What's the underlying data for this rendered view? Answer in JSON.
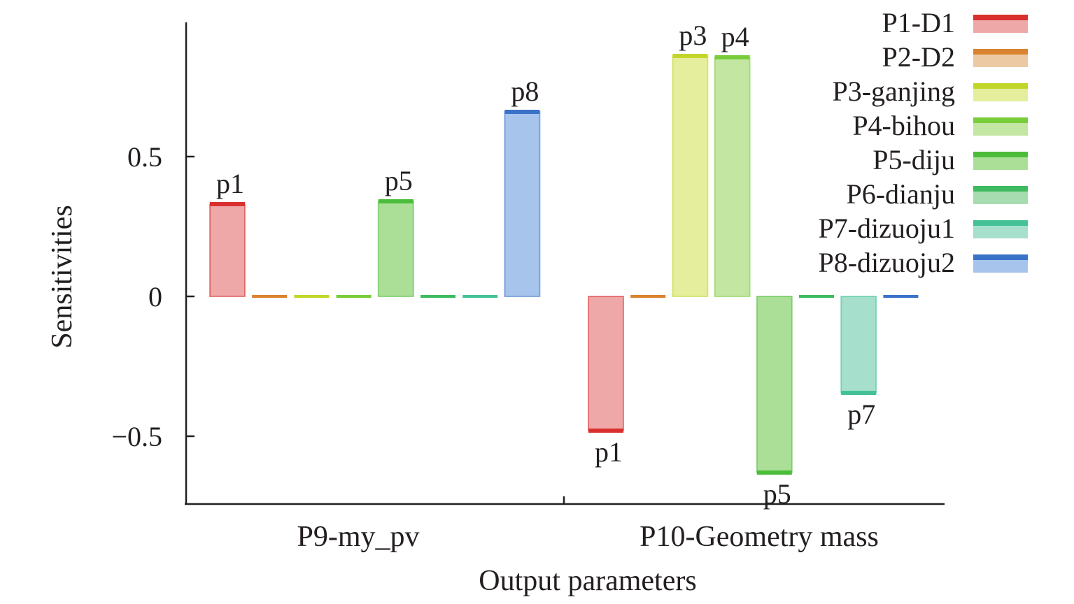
{
  "chart_data": {
    "type": "bar",
    "xlabel": "Output parameters",
    "ylabel": "Sensitivities",
    "ylim": [
      -0.74,
      0.96
    ],
    "yticks": [
      {
        "value": 0.5,
        "label": "0.5"
      },
      {
        "value": 0,
        "label": "0"
      },
      {
        "value": -0.5,
        "label": "−0.5"
      }
    ],
    "categories": [
      "P9-my_pv",
      "P10-Geometry mass"
    ],
    "legend_position": "top-right",
    "series": [
      {
        "name": "P1-D1",
        "color": "#d9302f",
        "fill": "#eda8a7",
        "values": [
          0.33,
          -0.48
        ],
        "labels": [
          "p1",
          "p1"
        ]
      },
      {
        "name": "P2-D2",
        "color": "#d9822f",
        "fill": "#edc9a3",
        "values": [
          0.0,
          0.0
        ],
        "labels": [
          "",
          ""
        ]
      },
      {
        "name": "P3-ganjing",
        "color": "#c2d62a",
        "fill": "#e4ee9c",
        "values": [
          0.0,
          0.86
        ],
        "labels": [
          "",
          "p3"
        ]
      },
      {
        "name": "P4-bihou",
        "color": "#79cc3a",
        "fill": "#c4e6a3",
        "values": [
          0.0,
          0.855
        ],
        "labels": [
          "",
          "p4"
        ]
      },
      {
        "name": "P5-diju",
        "color": "#4cbd3a",
        "fill": "#abdf98",
        "values": [
          0.34,
          -0.63
        ],
        "labels": [
          "p5",
          "p5"
        ]
      },
      {
        "name": "P6-dianju",
        "color": "#3dbb5e",
        "fill": "#a6dcb0",
        "values": [
          0.0,
          0.0
        ],
        "labels": [
          "",
          ""
        ]
      },
      {
        "name": "P7-dizuoju1",
        "color": "#44c295",
        "fill": "#a6e0cc",
        "values": [
          0.0,
          -0.345
        ],
        "labels": [
          "",
          "p7"
        ]
      },
      {
        "name": "P8-dizuoju2",
        "color": "#3a72c9",
        "fill": "#a7c5ec",
        "values": [
          0.66,
          0.0
        ],
        "labels": [
          "p8",
          ""
        ]
      }
    ]
  }
}
